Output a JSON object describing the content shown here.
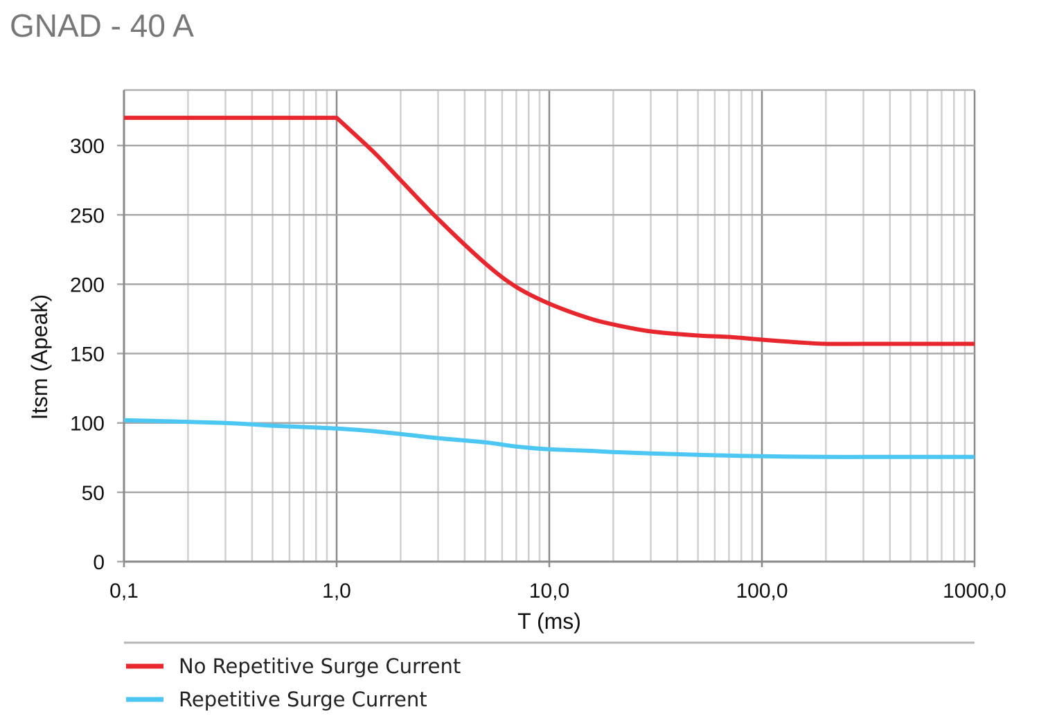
{
  "title": "GNAD - 40 A",
  "chart_data": {
    "type": "line",
    "title": "GNAD - 40 A",
    "xlabel": "T (ms)",
    "ylabel": "Itsm (Apeak)",
    "xscale": "log",
    "xlim": [
      0.1,
      1000
    ],
    "ylim": [
      0,
      340
    ],
    "xticks": [
      0.1,
      1,
      10,
      100,
      1000
    ],
    "xtick_labels": [
      "0,1",
      "1,0",
      "10,0",
      "100,0",
      "1000,0"
    ],
    "yticks": [
      0,
      50,
      100,
      150,
      200,
      250,
      300
    ],
    "ytick_labels": [
      "0",
      "50",
      "100",
      "150",
      "200",
      "250",
      "300"
    ],
    "grid": true,
    "legend_position": "bottom",
    "series": [
      {
        "name": "No Repetitive Surge Current",
        "color": "#e8262d",
        "x": [
          0.1,
          0.5,
          1.0,
          1.5,
          2,
          3,
          5,
          7,
          10,
          15,
          20,
          30,
          50,
          70,
          100,
          150,
          200,
          300,
          500,
          1000
        ],
        "y": [
          320,
          320,
          320,
          295,
          275,
          247,
          215,
          198,
          186,
          176,
          171,
          166,
          163,
          162,
          160,
          158,
          157,
          157,
          157,
          157
        ]
      },
      {
        "name": "Repetitive Surge Current",
        "color": "#4cc6f2",
        "x": [
          0.1,
          0.3,
          0.5,
          1.0,
          1.5,
          2,
          3,
          5,
          7,
          10,
          15,
          20,
          30,
          50,
          100,
          200,
          300,
          500,
          1000
        ],
        "y": [
          102,
          100,
          98,
          96,
          94,
          92,
          89,
          86,
          83,
          81,
          80,
          79,
          78,
          77,
          76,
          75.5,
          75.5,
          75.5,
          75.5
        ]
      }
    ]
  }
}
